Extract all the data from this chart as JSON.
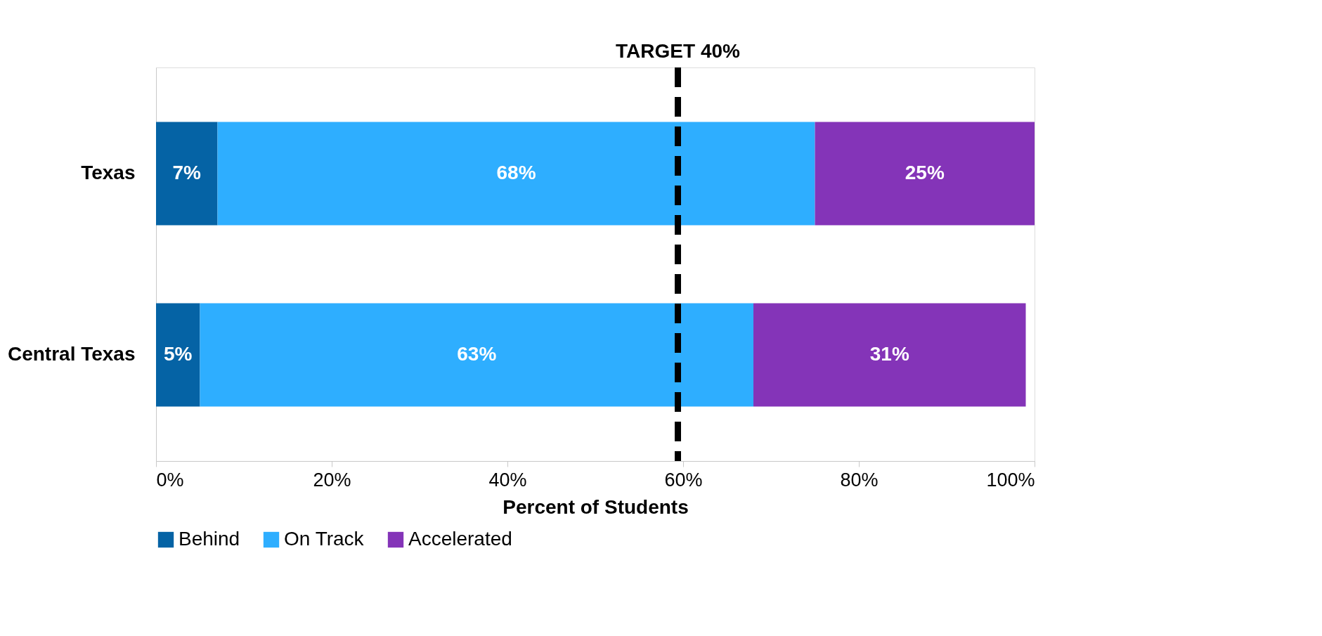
{
  "chart_data": {
    "type": "bar",
    "orientation": "horizontal",
    "stacked": true,
    "categories": [
      "Texas",
      "Central Texas"
    ],
    "series": [
      {
        "name": "Behind",
        "color": "#0563a5",
        "values": [
          7,
          5
        ],
        "value_labels": [
          "7%",
          "5%"
        ]
      },
      {
        "name": "On Track",
        "color": "#2eaeff",
        "values": [
          68,
          63
        ],
        "value_labels": [
          "68%",
          "63%"
        ]
      },
      {
        "name": "Accelerated",
        "color": "#8434b8",
        "values": [
          25,
          31
        ],
        "value_labels": [
          "25%",
          "31%"
        ]
      }
    ],
    "xlabel": "Percent of Students",
    "xlim": [
      0,
      100
    ],
    "xticks": [
      {
        "value": 0,
        "label": "0%"
      },
      {
        "value": 20,
        "label": "20%"
      },
      {
        "value": 40,
        "label": "40%"
      },
      {
        "value": 60,
        "label": "60%"
      },
      {
        "value": 80,
        "label": "80%"
      },
      {
        "value": 100,
        "label": "100%"
      }
    ],
    "ref_lines": [
      {
        "axis": "x",
        "value": 59.4,
        "label": "TARGET 40%",
        "color": "#000000",
        "line_style": "dashed"
      }
    ],
    "legend": "bottom",
    "grid": false
  }
}
